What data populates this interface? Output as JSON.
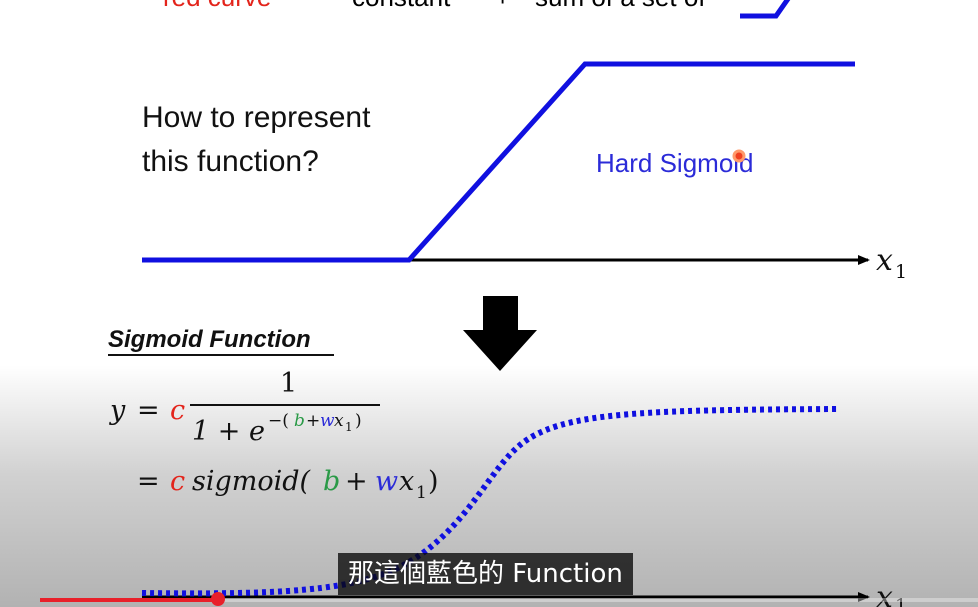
{
  "slide": {
    "top_left_text": "red curve",
    "top_mid_text_1": "constant",
    "top_mid_plus": "+",
    "top_mid_text_2": "sum of a set of",
    "question_line1": "How to represent",
    "question_line2": "this function?",
    "hard_sigmoid_label": "Hard Sigmoid",
    "axis_var": "x",
    "axis_sub": "1",
    "sigmoid_heading": "Sigmoid Function"
  },
  "formula": {
    "y": "y",
    "eq": "=",
    "c": "c",
    "num": "1",
    "den_base": "1 + e",
    "exp_minus": "−(",
    "exp_b": "b",
    "exp_plus": "+",
    "exp_w": "w",
    "exp_x": "x",
    "exp_sub": "1",
    "exp_close": ")",
    "line2_eq": "=",
    "line2_c": "c",
    "line2_fn": "sigmoid(",
    "line2_b": "b",
    "line2_plus": "+",
    "line2_w": "w",
    "line2_x": "x",
    "line2_sub": "1",
    "line2_close": ")"
  },
  "colors": {
    "curve_blue": "#1010e0",
    "red": "#e3241b",
    "green": "#2a9a47",
    "blue_var": "#2b2bd8"
  },
  "caption": {
    "text": "那這個藍色的 Function"
  },
  "player": {
    "progress": 0.19
  }
}
